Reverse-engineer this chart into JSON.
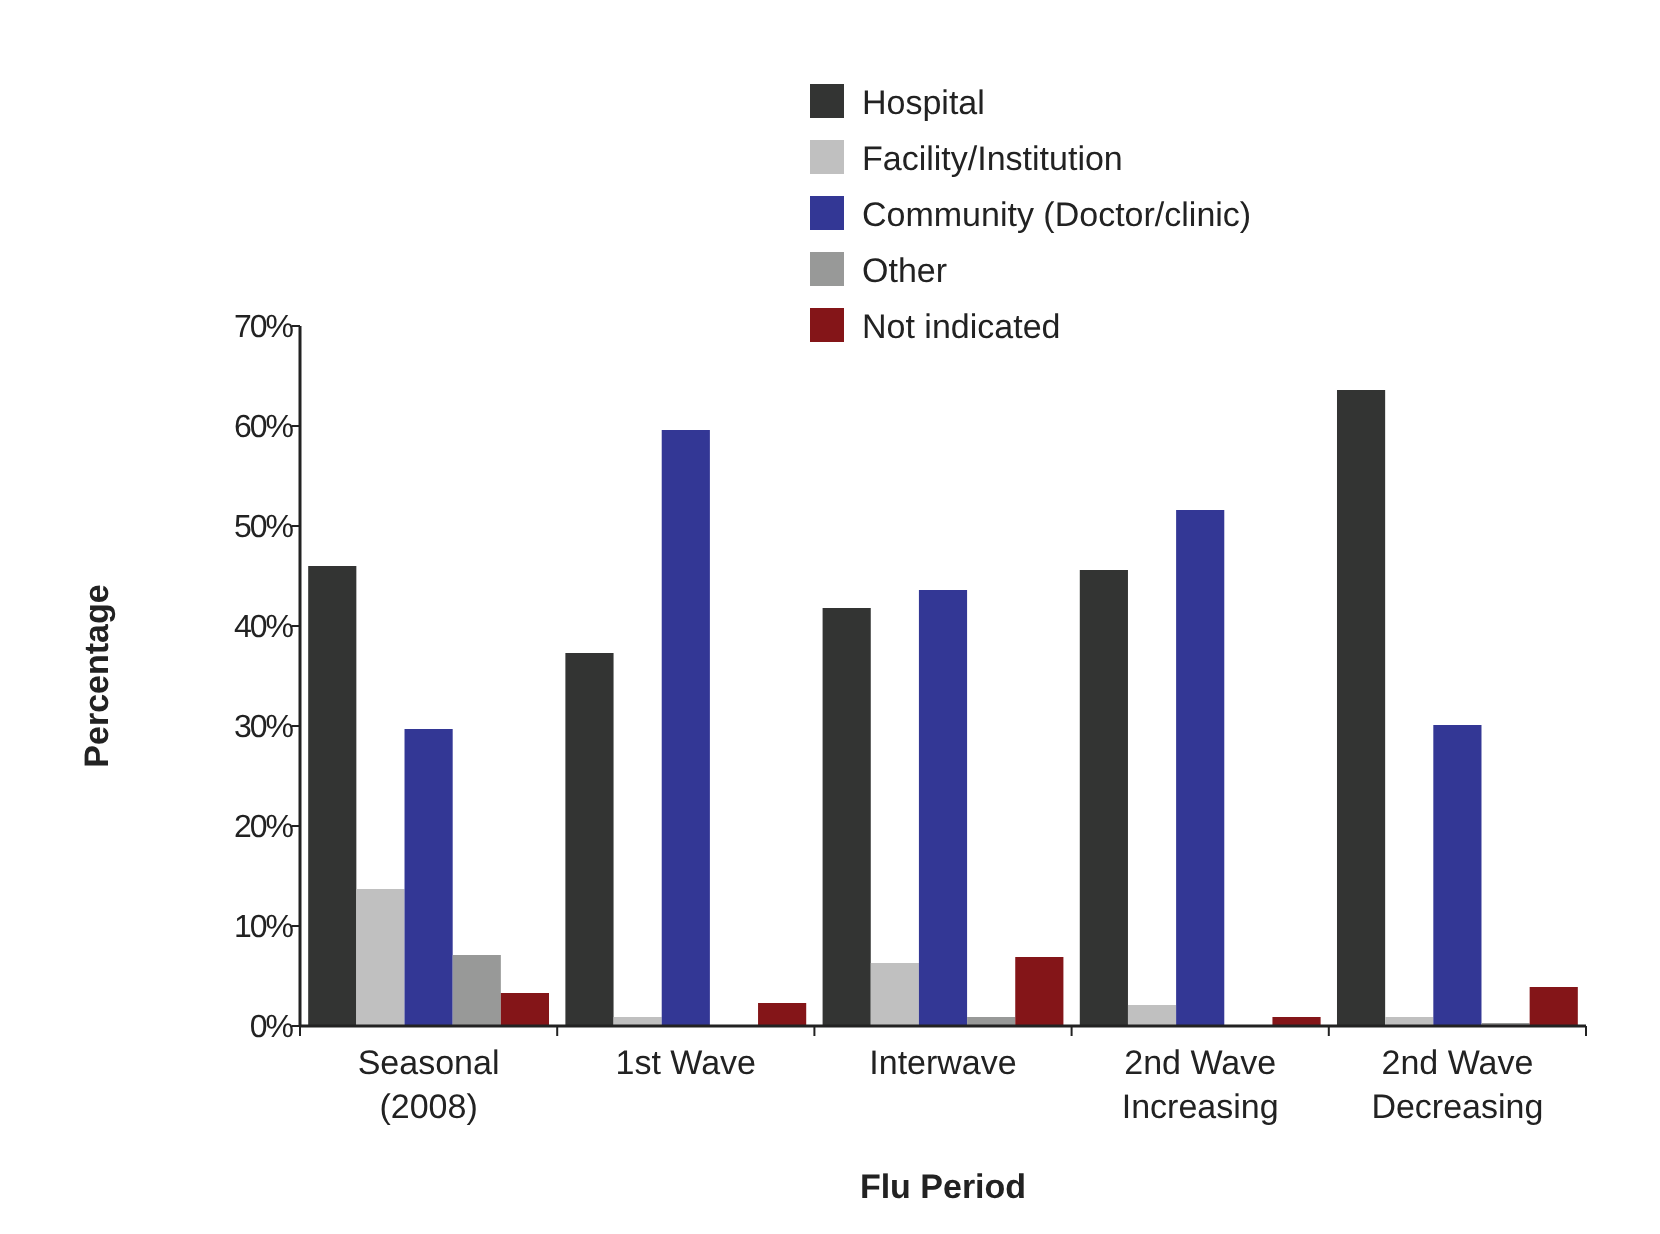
{
  "chart_data": {
    "type": "bar",
    "xlabel": "Flu Period",
    "ylabel": "Percentage",
    "categories": [
      "Seasonal\n(2008)",
      "1st Wave",
      "Interwave",
      "2nd Wave\nIncreasing",
      "2nd Wave\nDecreasing"
    ],
    "series": [
      {
        "name": "Hospital",
        "color": "#333433",
        "values": [
          46.0,
          37.3,
          41.8,
          45.6,
          63.6
        ]
      },
      {
        "name": "Facility/Institution",
        "color": "#c0c0c0",
        "values": [
          13.7,
          0.9,
          6.3,
          2.1,
          0.9
        ]
      },
      {
        "name": "Community (Doctor/clinic)",
        "color": "#333795",
        "values": [
          29.7,
          59.6,
          43.6,
          51.6,
          30.1
        ]
      },
      {
        "name": "Other",
        "color": "#989998",
        "values": [
          7.1,
          0,
          0.9,
          0,
          0.3
        ]
      },
      {
        "name": "Not indicated",
        "color": "#841518",
        "values": [
          3.3,
          2.3,
          6.9,
          0.9,
          3.9
        ]
      }
    ],
    "ylim": [
      0,
      70
    ],
    "yticks": [
      {
        "value": 0,
        "label": "0%"
      },
      {
        "value": 10,
        "label": "10%"
      },
      {
        "value": 20,
        "label": "20%"
      },
      {
        "value": 30,
        "label": "30%"
      },
      {
        "value": 40,
        "label": "40%"
      },
      {
        "value": 50,
        "label": "50%"
      },
      {
        "value": 60,
        "label": "60%"
      },
      {
        "value": 70,
        "label": "70%"
      }
    ],
    "grid": false,
    "legend": "top"
  }
}
